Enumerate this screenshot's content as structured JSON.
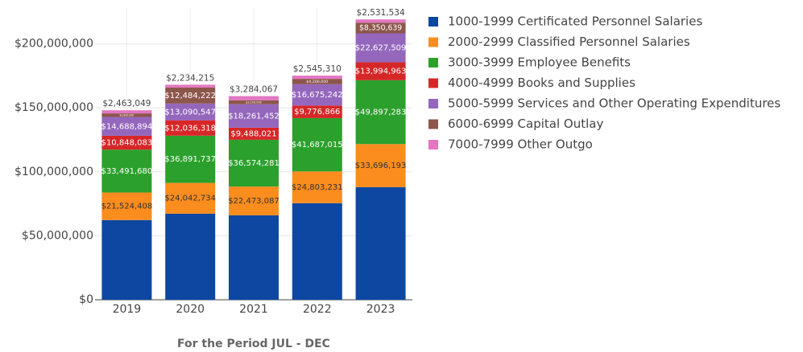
{
  "chart_data": {
    "type": "stacked-bar",
    "x_label": "For the Period JUL - DEC",
    "categories": [
      "2019",
      "2020",
      "2021",
      "2022",
      "2023"
    ],
    "ylim": [
      0,
      228000000
    ],
    "yticks": [
      {
        "value": 0,
        "label": "$0"
      },
      {
        "value": 50000000,
        "label": "$50,000,000"
      },
      {
        "value": 100000000,
        "label": "$100,000,000"
      },
      {
        "value": 150000000,
        "label": "$150,000,000"
      },
      {
        "value": 200000000,
        "label": "$200,000,000"
      }
    ],
    "grid": true,
    "legend": "right",
    "series": [
      {
        "name": "1000-1999 Certificated Personnel Salaries",
        "color": "#0d47a1",
        "values": [
          62300000,
          67300000,
          66000000,
          75500000,
          88000000
        ]
      },
      {
        "name": "2000-2999 Classified Personnel Salaries",
        "color": "#fb8c1e",
        "values": [
          21524408,
          24042734,
          22473087,
          24803231,
          33696193
        ],
        "value_labels": [
          "$21,524,408",
          "$24,042,734",
          "$22,473,087",
          "$24,803,231",
          "$33,696,193"
        ]
      },
      {
        "name": "3000-3999 Employee Benefits",
        "color": "#2ca02c",
        "values": [
          33491680,
          36891737,
          36574281,
          41687015,
          49897283
        ],
        "value_labels": [
          "$33,491,680",
          "$36,891,737",
          "$36,574,281",
          "$41,687,015",
          "$49,897,283"
        ]
      },
      {
        "name": "4000-4999 Books and Supplies",
        "color": "#d62728",
        "values": [
          10848083,
          12036318,
          9488021,
          9776866,
          13994963
        ],
        "value_labels": [
          "$10,848,083",
          "$12,036,318",
          "$9,488,021",
          "$9,776,866",
          "$13,994,963"
        ]
      },
      {
        "name": "5000-5999 Services and Other Operating Expenditures",
        "color": "#9467bd",
        "values": [
          14688894,
          13090547,
          18261452,
          16675242,
          22627509
        ],
        "value_labels": [
          "$14,688,894",
          "$13,090,547",
          "$18,261,452",
          "$16,675,242",
          "$22,627,509"
        ]
      },
      {
        "name": "6000-6999 Capital Outlay",
        "color": "#8c564b",
        "values": [
          2800000,
          12484222,
          3100000,
          4200000,
          8350639
        ],
        "value_labels": [
          "$2,800,000",
          "$12,484,222",
          "$3,100,000",
          "$4,200,000",
          "$8,350,639"
        ]
      },
      {
        "name": "7000-7999 Other Outgo",
        "color": "#e377c2",
        "values": [
          2463049,
          2234215,
          3284067,
          2545310,
          2531534
        ],
        "value_labels": [
          "$2,463,049",
          "$2,234,215",
          "$3,284,067",
          "$2,545,310",
          "$2,531,534"
        ]
      }
    ]
  }
}
